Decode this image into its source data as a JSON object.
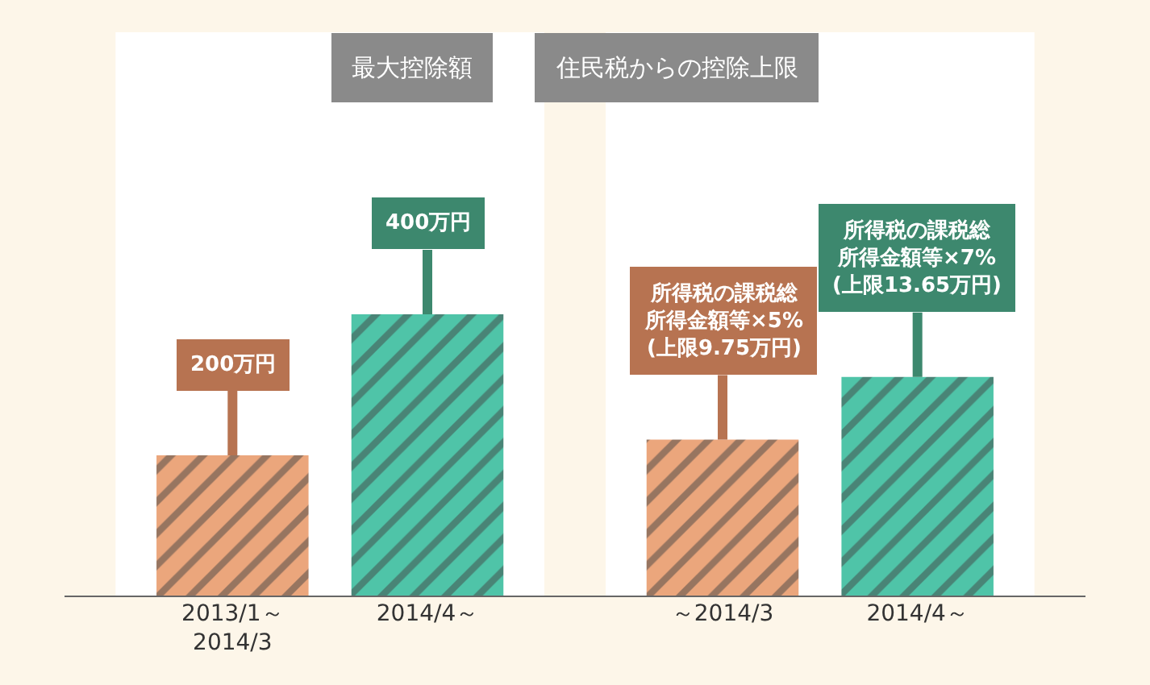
{
  "chart_data": [
    {
      "type": "bar",
      "title": "最大控除額",
      "categories": [
        "2013/1～\n2014/3",
        "2014/4～"
      ],
      "values": [
        200,
        400
      ],
      "colors": [
        "#eba67c",
        "#4fc4a8"
      ],
      "value_labels": [
        "200万円",
        "400万円"
      ],
      "ylim": [
        0,
        800
      ],
      "tick_labels": "x"
    },
    {
      "type": "bar",
      "title": "住民税からの控除上限",
      "categories": [
        "～2014/3",
        "2014/4～"
      ],
      "values": [
        5,
        7
      ],
      "colors": [
        "#eba67c",
        "#4fc4a8"
      ],
      "value_labels": [
        "所得税の課税総所得金額等×5%(上限9.75万円)",
        "所得税の課税総所得金額等×7%(上限13.65万円)"
      ],
      "ylim": [
        0,
        18
      ],
      "tick_labels": "x"
    }
  ]
}
